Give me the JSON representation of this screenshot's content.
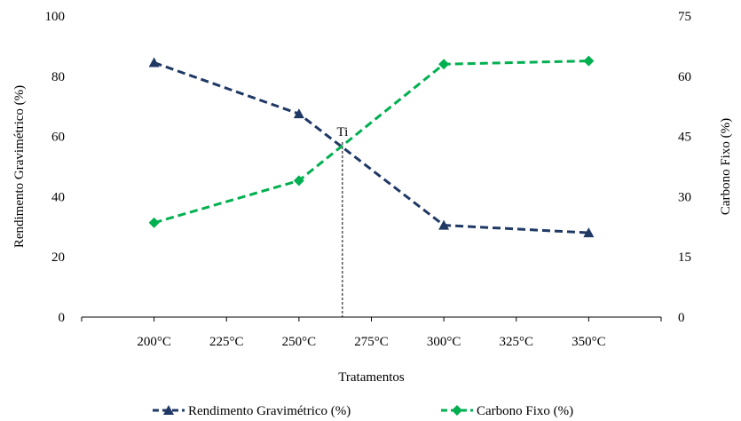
{
  "chart_data": {
    "type": "line",
    "xlabel": "Tratamentos",
    "ylabel_left": "Rendimento Gravimétrico (%)",
    "ylabel_right": "Carbono Fixo (%)",
    "x_range": [
      175,
      375
    ],
    "x_ticks": [
      200,
      225,
      250,
      275,
      300,
      325,
      350
    ],
    "x_tick_labels": [
      "200°C",
      "225°C",
      "250°C",
      "275°C",
      "300°C",
      "325°C",
      "350°C"
    ],
    "ylim_left": [
      0,
      100
    ],
    "y_ticks_left": [
      0,
      20,
      40,
      60,
      80,
      100
    ],
    "ylim_right": [
      0,
      75
    ],
    "y_ticks_right": [
      0,
      15,
      30,
      45,
      60,
      75
    ],
    "grid": false,
    "legend_position": "bottom",
    "series": [
      {
        "name": "Rendimento Gravimétrico (%)",
        "axis": "left",
        "color": "#1f3864",
        "marker": "triangle",
        "x": [
          200,
          250,
          300,
          350
        ],
        "y": [
          84.5,
          67.5,
          30.5,
          28
        ]
      },
      {
        "name": "Carbono Fixo (%)",
        "axis": "right",
        "color": "#00b050",
        "marker": "diamond",
        "x": [
          200,
          250,
          300,
          350
        ],
        "y": [
          23.5,
          34,
          63,
          63.8
        ]
      }
    ],
    "annotation": {
      "text": "Ti",
      "x": 265
    }
  }
}
